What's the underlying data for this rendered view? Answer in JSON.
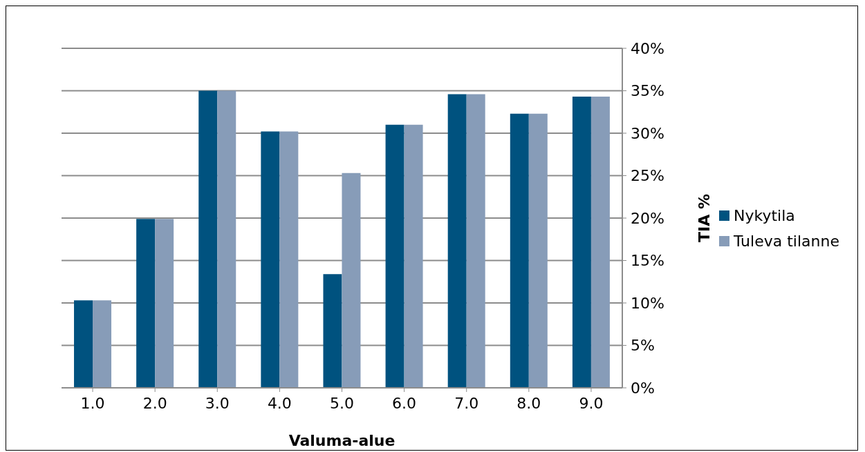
{
  "chart_data": {
    "type": "bar",
    "xlabel": "Valuma-alue",
    "ylabel": "TIA %",
    "categories": [
      "1.0",
      "2.0",
      "3.0",
      "4.0",
      "5.0",
      "6.0",
      "7.0",
      "8.0",
      "9.0"
    ],
    "series": [
      {
        "name": "Nykytila",
        "color": "#00527f",
        "values": [
          10.3,
          19.9,
          35.0,
          30.2,
          13.4,
          31.0,
          34.6,
          32.3,
          34.3
        ]
      },
      {
        "name": "Tuleva tilanne",
        "color": "#879cb8",
        "values": [
          10.3,
          19.9,
          35.0,
          30.2,
          25.3,
          31.0,
          34.6,
          32.3,
          34.3
        ]
      }
    ],
    "ylim": [
      0,
      40
    ],
    "yticks": [
      {
        "value": 0,
        "label": "0%"
      },
      {
        "value": 5,
        "label": "5%"
      },
      {
        "value": 10,
        "label": "10%"
      },
      {
        "value": 15,
        "label": "15%"
      },
      {
        "value": 20,
        "label": "20%"
      },
      {
        "value": 25,
        "label": "25%"
      },
      {
        "value": 30,
        "label": "30%"
      },
      {
        "value": 35,
        "label": "35%"
      },
      {
        "value": 40,
        "label": "40%"
      }
    ],
    "grid": "y",
    "legend": "right"
  }
}
